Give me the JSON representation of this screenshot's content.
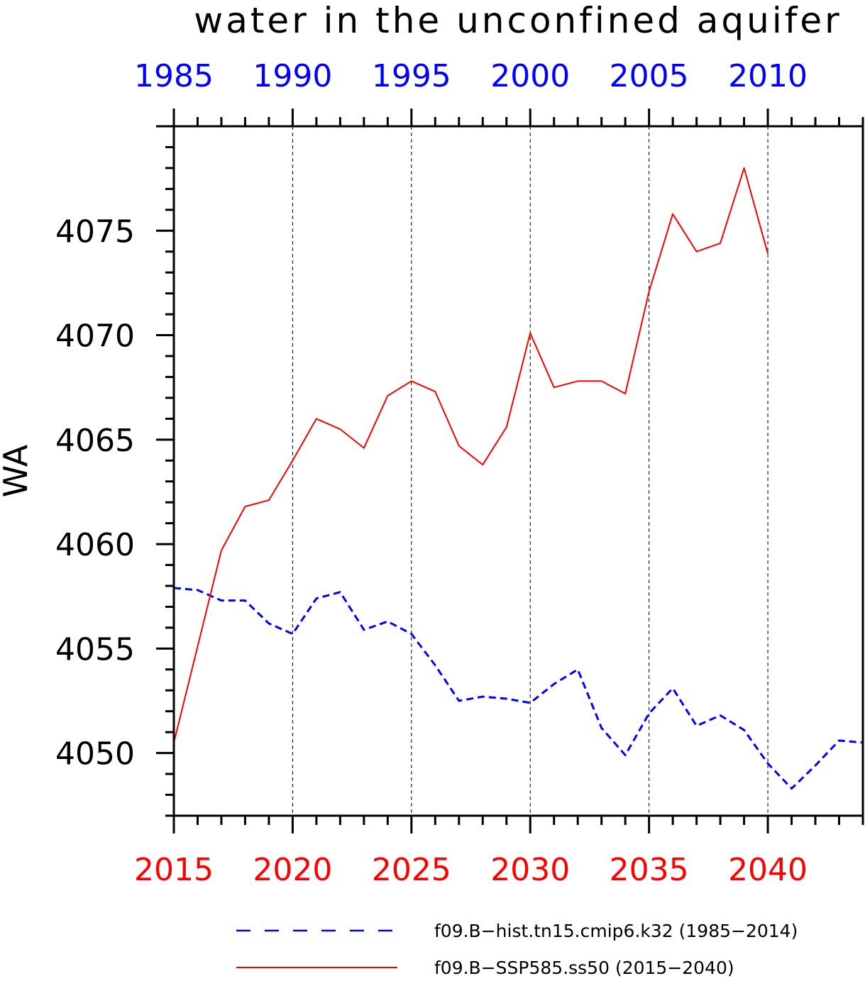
{
  "chart_data": {
    "type": "line",
    "title": "water in the unconfined aquifer",
    "ylabel": "WA",
    "ylim": [
      4047,
      4080
    ],
    "yticks": [
      4050,
      4055,
      4060,
      4065,
      4070,
      4075
    ],
    "grid": "vertical dashed lines at 5-year ticks",
    "legend_position": "bottom, below the plot",
    "x_bottom": {
      "label": "",
      "color": "#ff0000",
      "range": [
        2015,
        2044
      ],
      "ticks": [
        2015,
        2020,
        2025,
        2030,
        2035,
        2040
      ]
    },
    "x_top": {
      "label": "",
      "color": "#0000ff",
      "range": [
        1985,
        2014
      ],
      "ticks": [
        1985,
        1990,
        1995,
        2000,
        2005,
        2010
      ]
    },
    "series": [
      {
        "name": "f09.B−hist.tn15.cmip6.k32 (1985−2014)",
        "color": "#0000ff",
        "style": "dashed",
        "axis": "top",
        "x": [
          1985,
          1986,
          1987,
          1988,
          1989,
          1990,
          1991,
          1992,
          1993,
          1994,
          1995,
          1996,
          1997,
          1998,
          1999,
          2000,
          2001,
          2002,
          2003,
          2004,
          2005,
          2006,
          2007,
          2008,
          2009,
          2010,
          2011,
          2012,
          2013,
          2014
        ],
        "y": [
          4057.9,
          4057.8,
          4057.3,
          4057.3,
          4056.2,
          4055.7,
          4057.4,
          4057.7,
          4055.9,
          4056.3,
          4055.7,
          4054.2,
          4052.5,
          4052.7,
          4052.6,
          4052.4,
          4053.3,
          4054.0,
          4051.2,
          4049.9,
          4051.9,
          4053.1,
          4051.3,
          4051.8,
          4051.1,
          4049.5,
          4048.3,
          4049.4,
          4050.6,
          4050.5
        ]
      },
      {
        "name": "f09.B−SSP585.ss50 (2015−2040)",
        "color": "#ff0000",
        "style": "solid",
        "axis": "bottom",
        "x": [
          2015,
          2016,
          2017,
          2018,
          2019,
          2020,
          2021,
          2022,
          2023,
          2024,
          2025,
          2026,
          2027,
          2028,
          2029,
          2030,
          2031,
          2032,
          2033,
          2034,
          2035,
          2036,
          2037,
          2038,
          2039,
          2040
        ],
        "y": [
          4050.5,
          4055.1,
          4059.7,
          4061.8,
          4062.1,
          4064.0,
          4066.0,
          4065.5,
          4064.6,
          4067.1,
          4067.8,
          4067.3,
          4064.7,
          4063.8,
          4065.6,
          4070.1,
          4067.5,
          4067.8,
          4067.8,
          4067.2,
          4072.1,
          4075.8,
          4074.0,
          4074.4,
          4078.0,
          4073.9
        ]
      }
    ]
  }
}
